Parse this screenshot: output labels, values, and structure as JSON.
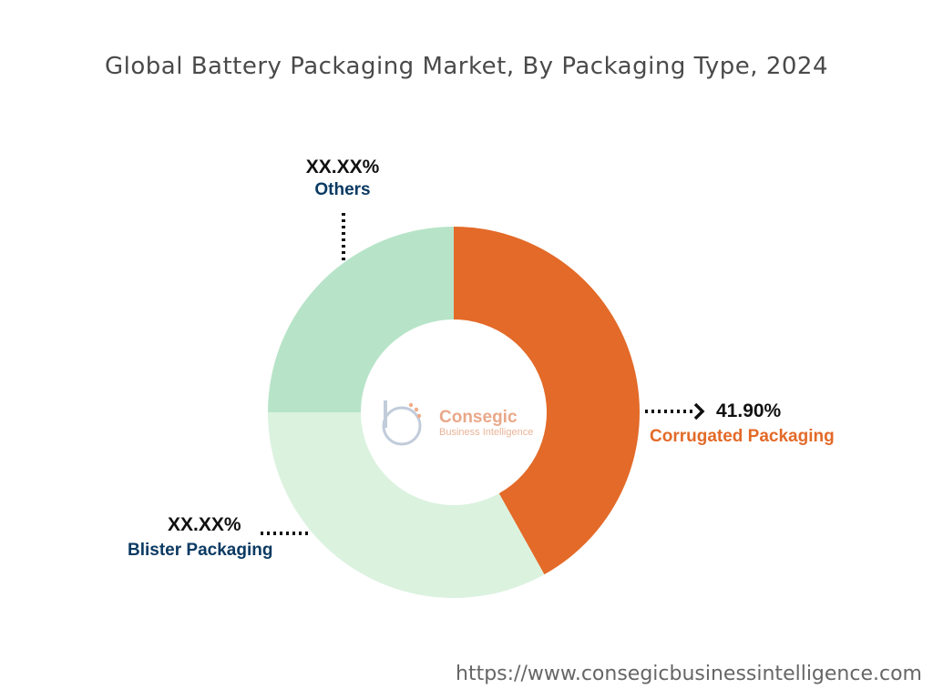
{
  "title": "Global Battery Packaging Market, By Packaging Type, 2024",
  "source_url": "https://www.consegicbusinessintelligence.com",
  "logo": {
    "name": "Consegic",
    "tagline": "Business Intelligence"
  },
  "chart_data": {
    "type": "pie",
    "donut": true,
    "title": "Global Battery Packaging Market, By Packaging Type, 2024",
    "slices": [
      {
        "label": "Corrugated Packaging",
        "value_label": "41.90%",
        "value": 41.9,
        "color": "#e36a28",
        "label_color": "#e36a28"
      },
      {
        "label": "Blister Packaging",
        "value_label": "XX.XX%",
        "value": 33.1,
        "color": "#dbf2df",
        "label_color": "#0b3a63"
      },
      {
        "label": "Others",
        "value_label": "XX.XX%",
        "value": 25.0,
        "color": "#b7e4c8",
        "label_color": "#0b3a63"
      }
    ]
  }
}
